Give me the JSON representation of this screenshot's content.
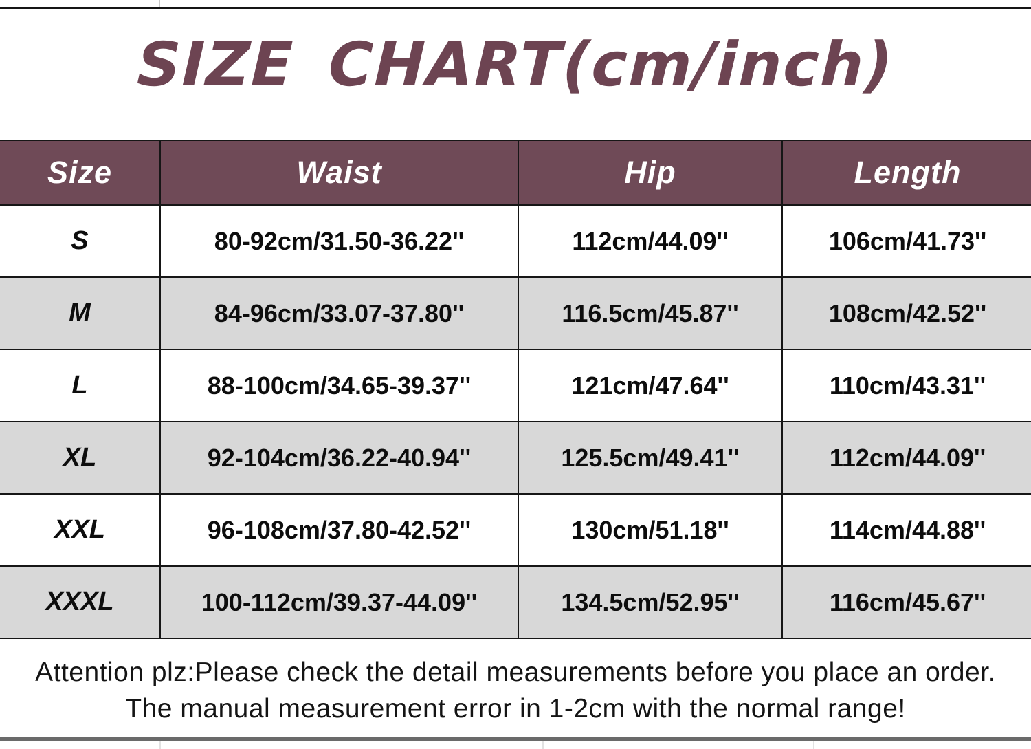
{
  "title": "SIZE CHART(cm/inch)",
  "chart_data": {
    "type": "table",
    "title": "SIZE CHART(cm/inch)",
    "columns": [
      "Size",
      "Waist",
      "Hip",
      "Length"
    ],
    "rows": [
      [
        "S",
        "80-92cm/31.50-36.22''",
        "112cm/44.09''",
        "106cm/41.73''"
      ],
      [
        "M",
        "84-96cm/33.07-37.80''",
        "116.5cm/45.87''",
        "108cm/42.52''"
      ],
      [
        "L",
        "88-100cm/34.65-39.37''",
        "121cm/47.64''",
        "110cm/43.31''"
      ],
      [
        "XL",
        "92-104cm/36.22-40.94''",
        "125.5cm/49.41''",
        "112cm/44.09''"
      ],
      [
        "XXL",
        "96-108cm/37.80-42.52''",
        "130cm/51.18''",
        "114cm/44.88''"
      ],
      [
        "XXXL",
        "100-112cm/39.37-44.09''",
        "134.5cm/52.95''",
        "116cm/45.67''"
      ]
    ],
    "row_striping": [
      "white",
      "gray"
    ],
    "legend_position": "none",
    "grid": true
  },
  "footer": {
    "line1": "Attention plz:Please check the detail measurements before you place an order.",
    "line2": "The manual measurement error in 1-2cm with the normal range!"
  },
  "colors": {
    "title_text": "#6d4452",
    "header_bg": "#6f4a57",
    "header_text": "#ffffff",
    "row_white": "#ffffff",
    "row_gray": "#d8d8d8",
    "border": "#161616",
    "footer_text": "#141414",
    "bottom_bar": "#6a6a6a"
  }
}
